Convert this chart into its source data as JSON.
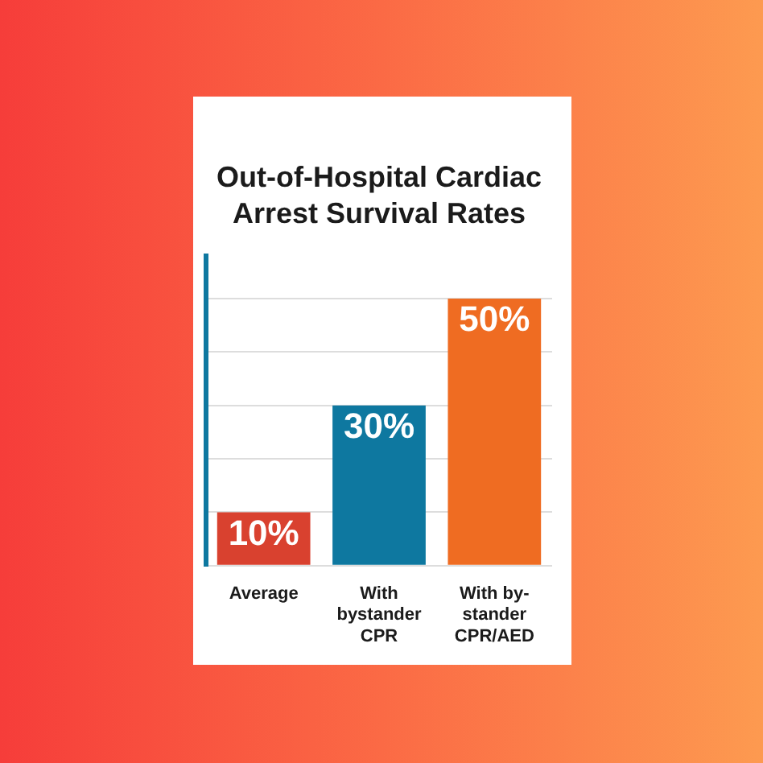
{
  "chart_data": {
    "type": "bar",
    "title": "Out-of-Hospital Cardiac Arrest Survival Rates",
    "categories": [
      "Average",
      "With bystander CPR",
      "With by-stander CPR/AED"
    ],
    "values": [
      10,
      30,
      50
    ],
    "colors": [
      "#d9412f",
      "#0e78a0",
      "#ef6c22"
    ],
    "value_labels": [
      "10%",
      "30%",
      "50%"
    ],
    "ylim": [
      0,
      58
    ],
    "yticks": [
      {
        "value": 0,
        "label": null
      },
      {
        "value": 10,
        "label": null
      },
      {
        "value": 20,
        "label": null
      },
      {
        "value": 30,
        "label": null
      },
      {
        "value": 40,
        "label": null
      },
      {
        "value": 50,
        "label": null
      }
    ],
    "grid": "y",
    "tick_labels": "x"
  }
}
